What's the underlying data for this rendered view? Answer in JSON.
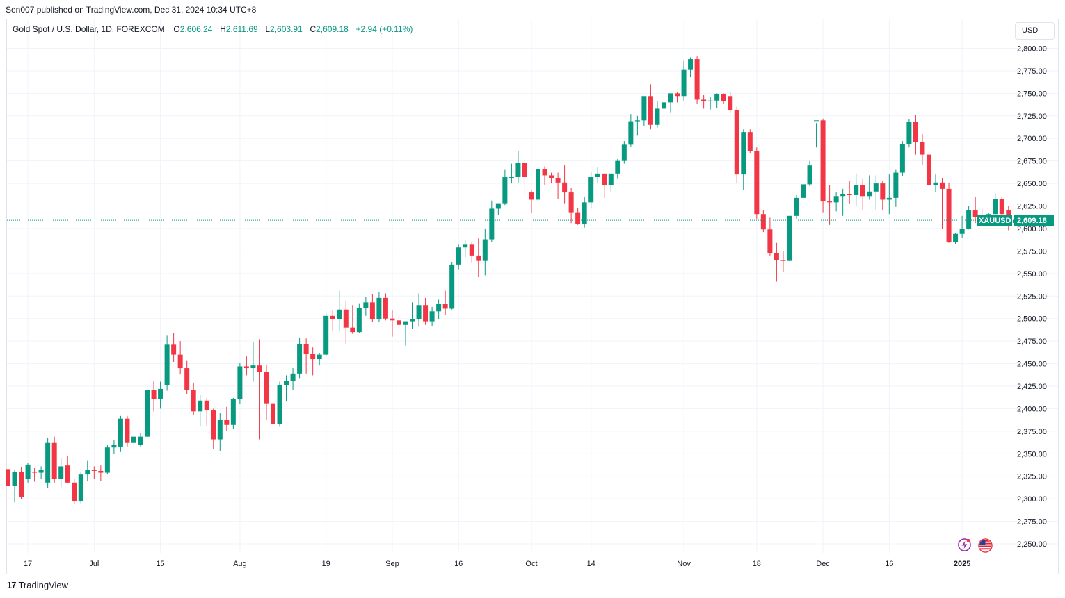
{
  "header": {
    "publisher": "Sen007 published on TradingView.com, Dec 31, 2024 10:34 UTC+8"
  },
  "legend": {
    "title": "Gold Spot / U.S. Dollar, 1D, FOREXCOM",
    "o_label": "O",
    "o_value": "2,606.24",
    "h_label": "H",
    "h_value": "2,611.69",
    "l_label": "L",
    "l_value": "2,603.91",
    "c_label": "C",
    "c_value": "2,609.18",
    "change": "+2.94 (+0.11%)"
  },
  "currency_button": "USD",
  "footer": {
    "brand": "TradingView"
  },
  "colors": {
    "up": "#089981",
    "down": "#f23645",
    "grid": "#f0f3fa",
    "text": "#131722"
  },
  "icons": {
    "alert": "lightning-icon",
    "region": "us-flag-icon",
    "logo": "tradingview-logo-icon"
  },
  "chart_data": {
    "type": "candlestick",
    "symbol": "XAUUSD",
    "last_price": 2609.18,
    "last_price_label": "2,609.18",
    "ylim": [
      2240,
      2832
    ],
    "y_ticks": [
      2250,
      2275,
      2300,
      2325,
      2350,
      2375,
      2400,
      2425,
      2450,
      2475,
      2500,
      2525,
      2550,
      2575,
      2600,
      2625,
      2650,
      2675,
      2700,
      2725,
      2750,
      2775,
      2800
    ],
    "y_tick_labels": [
      "2,250.00",
      "2,275.00",
      "2,300.00",
      "2,325.00",
      "2,350.00",
      "2,375.00",
      "2,400.00",
      "2,425.00",
      "2,450.00",
      "2,475.00",
      "2,500.00",
      "2,525.00",
      "2,550.00",
      "2,575.00",
      "2,600.00",
      "2,625.00",
      "2,650.00",
      "2,675.00",
      "2,700.00",
      "2,725.00",
      "2,750.00",
      "2,775.00",
      "2,800.00"
    ],
    "x_ticks": [
      {
        "label": "17",
        "index": 3,
        "bold": false
      },
      {
        "label": "Jul",
        "index": 13,
        "bold": false
      },
      {
        "label": "15",
        "index": 23,
        "bold": false
      },
      {
        "label": "Aug",
        "index": 35,
        "bold": false
      },
      {
        "label": "19",
        "index": 48,
        "bold": false
      },
      {
        "label": "Sep",
        "index": 58,
        "bold": false
      },
      {
        "label": "16",
        "index": 68,
        "bold": false
      },
      {
        "label": "Oct",
        "index": 79,
        "bold": false
      },
      {
        "label": "14",
        "index": 88,
        "bold": false
      },
      {
        "label": "Nov",
        "index": 102,
        "bold": false
      },
      {
        "label": "18",
        "index": 113,
        "bold": false
      },
      {
        "label": "Dec",
        "index": 123,
        "bold": false
      },
      {
        "label": "16",
        "index": 133,
        "bold": false
      },
      {
        "label": "2025",
        "index": 144,
        "bold": true
      }
    ],
    "candles": [
      [
        2333,
        2342,
        2310,
        2314
      ],
      [
        2314,
        2332,
        2296,
        2330
      ],
      [
        2330,
        2335,
        2300,
        2302
      ],
      [
        2322,
        2340,
        2318,
        2338
      ],
      [
        2330,
        2334,
        2319,
        2329
      ],
      [
        2329,
        2336,
        2322,
        2332
      ],
      [
        2318,
        2368,
        2312,
        2362
      ],
      [
        2362,
        2369,
        2318,
        2322
      ],
      [
        2322,
        2345,
        2313,
        2336
      ],
      [
        2337,
        2348,
        2317,
        2318
      ],
      [
        2318,
        2322,
        2294,
        2297
      ],
      [
        2297,
        2330,
        2295,
        2327
      ],
      [
        2327,
        2342,
        2320,
        2332
      ],
      [
        2332,
        2336,
        2322,
        2331
      ],
      [
        2331,
        2337,
        2320,
        2329
      ],
      [
        2329,
        2360,
        2327,
        2357
      ],
      [
        2357,
        2365,
        2350,
        2360
      ],
      [
        2358,
        2392,
        2352,
        2389
      ],
      [
        2389,
        2392,
        2358,
        2362
      ],
      [
        2362,
        2370,
        2355,
        2369
      ],
      [
        2360,
        2373,
        2358,
        2369
      ],
      [
        2369,
        2427,
        2368,
        2421
      ],
      [
        2421,
        2431,
        2397,
        2411
      ],
      [
        2411,
        2430,
        2400,
        2422
      ],
      [
        2426,
        2481,
        2420,
        2471
      ],
      [
        2471,
        2484,
        2452,
        2460
      ],
      [
        2460,
        2475,
        2438,
        2445
      ],
      [
        2445,
        2453,
        2416,
        2421
      ],
      [
        2421,
        2429,
        2393,
        2397
      ],
      [
        2397,
        2415,
        2380,
        2409
      ],
      [
        2409,
        2412,
        2381,
        2398
      ],
      [
        2398,
        2400,
        2355,
        2366
      ],
      [
        2366,
        2395,
        2353,
        2388
      ],
      [
        2388,
        2402,
        2375,
        2382
      ],
      [
        2382,
        2412,
        2378,
        2411
      ],
      [
        2411,
        2451,
        2405,
        2447
      ],
      [
        2447,
        2458,
        2437,
        2445
      ],
      [
        2445,
        2474,
        2430,
        2448
      ],
      [
        2448,
        2477,
        2366,
        2441
      ],
      [
        2441,
        2449,
        2388,
        2406
      ],
      [
        2406,
        2416,
        2387,
        2383
      ],
      [
        2383,
        2430,
        2380,
        2426
      ],
      [
        2426,
        2437,
        2408,
        2431
      ],
      [
        2431,
        2445,
        2421,
        2439
      ],
      [
        2439,
        2479,
        2434,
        2472
      ],
      [
        2472,
        2478,
        2439,
        2461
      ],
      [
        2461,
        2468,
        2437,
        2455
      ],
      [
        2455,
        2462,
        2448,
        2460
      ],
      [
        2460,
        2506,
        2458,
        2503
      ],
      [
        2503,
        2509,
        2486,
        2499
      ],
      [
        2499,
        2531,
        2486,
        2510
      ],
      [
        2510,
        2520,
        2472,
        2490
      ],
      [
        2490,
        2515,
        2483,
        2485
      ],
      [
        2485,
        2517,
        2484,
        2512
      ],
      [
        2512,
        2524,
        2503,
        2518
      ],
      [
        2518,
        2527,
        2496,
        2499
      ],
      [
        2499,
        2529,
        2496,
        2523
      ],
      [
        2523,
        2528,
        2498,
        2500
      ],
      [
        2500,
        2509,
        2480,
        2498
      ],
      [
        2498,
        2504,
        2476,
        2493
      ],
      [
        2493,
        2497,
        2470,
        2497
      ],
      [
        2497,
        2518,
        2489,
        2499
      ],
      [
        2499,
        2528,
        2491,
        2515
      ],
      [
        2515,
        2523,
        2493,
        2497
      ],
      [
        2497,
        2513,
        2492,
        2508
      ],
      [
        2508,
        2521,
        2499,
        2516
      ],
      [
        2516,
        2531,
        2504,
        2511
      ],
      [
        2511,
        2563,
        2510,
        2560
      ],
      [
        2560,
        2582,
        2554,
        2579
      ],
      [
        2579,
        2587,
        2568,
        2582
      ],
      [
        2582,
        2585,
        2562,
        2570
      ],
      [
        2570,
        2589,
        2546,
        2564
      ],
      [
        2564,
        2600,
        2548,
        2588
      ],
      [
        2588,
        2631,
        2585,
        2622
      ],
      [
        2622,
        2628,
        2615,
        2628
      ],
      [
        2628,
        2665,
        2626,
        2657
      ],
      [
        2657,
        2672,
        2650,
        2657
      ],
      [
        2657,
        2686,
        2651,
        2673
      ],
      [
        2673,
        2676,
        2635,
        2657
      ],
      [
        2640,
        2643,
        2617,
        2632
      ],
      [
        2632,
        2668,
        2626,
        2666
      ],
      [
        2666,
        2669,
        2648,
        2659
      ],
      [
        2659,
        2662,
        2650,
        2656
      ],
      [
        2656,
        2662,
        2633,
        2651
      ],
      [
        2651,
        2670,
        2628,
        2640
      ],
      [
        2640,
        2645,
        2606,
        2618
      ],
      [
        2618,
        2623,
        2604,
        2605
      ],
      [
        2605,
        2635,
        2601,
        2629
      ],
      [
        2629,
        2663,
        2622,
        2657
      ],
      [
        2657,
        2668,
        2650,
        2661
      ],
      [
        2661,
        2660,
        2634,
        2648
      ],
      [
        2648,
        2660,
        2641,
        2661
      ],
      [
        2661,
        2677,
        2655,
        2675
      ],
      [
        2675,
        2697,
        2672,
        2693
      ],
      [
        2693,
        2727,
        2691,
        2719
      ],
      [
        2719,
        2725,
        2703,
        2720
      ],
      [
        2720,
        2746,
        2714,
        2747
      ],
      [
        2747,
        2760,
        2710,
        2715
      ],
      [
        2715,
        2741,
        2712,
        2733
      ],
      [
        2733,
        2751,
        2720,
        2740
      ],
      [
        2740,
        2748,
        2729,
        2750
      ],
      [
        2750,
        2751,
        2740,
        2747
      ],
      [
        2747,
        2786,
        2742,
        2776
      ],
      [
        2776,
        2790,
        2768,
        2788
      ],
      [
        2788,
        2791,
        2738,
        2743
      ],
      [
        2743,
        2748,
        2733,
        2741
      ],
      [
        2741,
        2746,
        2732,
        2742
      ],
      [
        2742,
        2750,
        2734,
        2749
      ],
      [
        2749,
        2750,
        2738,
        2741
      ],
      [
        2747,
        2751,
        2729,
        2731
      ],
      [
        2731,
        2735,
        2650,
        2660
      ],
      [
        2660,
        2710,
        2643,
        2707
      ],
      [
        2707,
        2710,
        2684,
        2686
      ],
      [
        2686,
        2690,
        2610,
        2616
      ],
      [
        2616,
        2620,
        2596,
        2599
      ],
      [
        2599,
        2612,
        2570,
        2573
      ],
      [
        2573,
        2584,
        2541,
        2565
      ],
      [
        2565,
        2575,
        2552,
        2564
      ],
      [
        2564,
        2615,
        2562,
        2614
      ],
      [
        2614,
        2637,
        2610,
        2634
      ],
      [
        2634,
        2656,
        2626,
        2649
      ],
      [
        2649,
        2675,
        2647,
        2670
      ],
      [
        2720,
        2717,
        2690,
        2720
      ],
      [
        2720,
        2722,
        2618,
        2630
      ],
      [
        2630,
        2648,
        2604,
        2629
      ],
      [
        2629,
        2640,
        2619,
        2636
      ],
      [
        2636,
        2644,
        2614,
        2638
      ],
      [
        2638,
        2653,
        2627,
        2637
      ],
      [
        2637,
        2661,
        2625,
        2648
      ],
      [
        2648,
        2655,
        2620,
        2636
      ],
      [
        2636,
        2659,
        2632,
        2641
      ],
      [
        2641,
        2659,
        2621,
        2650
      ],
      [
        2650,
        2653,
        2620,
        2632
      ],
      [
        2632,
        2660,
        2616,
        2634
      ],
      [
        2634,
        2665,
        2624,
        2662
      ],
      [
        2662,
        2697,
        2658,
        2694
      ],
      [
        2694,
        2721,
        2690,
        2718
      ],
      [
        2718,
        2726,
        2682,
        2696
      ],
      [
        2696,
        2705,
        2671,
        2682
      ],
      [
        2682,
        2686,
        2647,
        2648
      ],
      [
        2648,
        2660,
        2640,
        2651
      ],
      [
        2651,
        2656,
        2600,
        2644
      ],
      [
        2644,
        2651,
        2584,
        2585
      ],
      [
        2585,
        2595,
        2583,
        2594
      ],
      [
        2594,
        2614,
        2590,
        2600
      ],
      [
        2600,
        2625,
        2599,
        2620
      ],
      [
        2620,
        2635,
        2606,
        2613
      ],
      [
        2613,
        2622,
        2609,
        2612
      ],
      [
        2612,
        2617,
        2608,
        2616
      ],
      [
        2616,
        2639,
        2613,
        2633
      ],
      [
        2633,
        2635,
        2614,
        2616
      ],
      [
        2620,
        2625,
        2598,
        2606
      ],
      [
        2606.24,
        2611.69,
        2603.91,
        2609.18
      ]
    ]
  }
}
